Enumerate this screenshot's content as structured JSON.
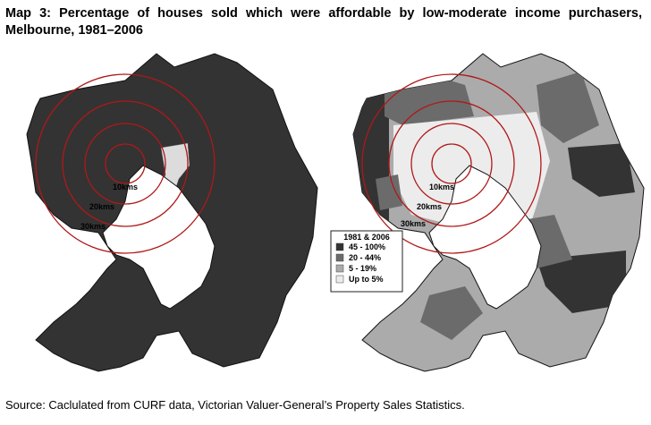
{
  "title": "Map 3: Percentage of houses sold which were affordable by low-moderate income purchasers, Melbourne, 1981–2006",
  "maps": [
    {
      "rings": [
        "10kms",
        "20kms",
        "30kms"
      ]
    },
    {
      "rings": [
        "10kms",
        "20kms",
        "30kms"
      ]
    }
  ],
  "legend": {
    "title": "1981 & 2006",
    "items": [
      {
        "label": "45 - 100%",
        "color": "#333333"
      },
      {
        "label": "20 -  44%",
        "color": "#6b6b6b"
      },
      {
        "label": "5 -  19%",
        "color": "#ababab"
      },
      {
        "label": "Up to 5%",
        "color": "#ececec"
      }
    ]
  },
  "source": "Source: Caclulated from CURF data, Victorian Valuer-General’s Property Sales Statistics."
}
